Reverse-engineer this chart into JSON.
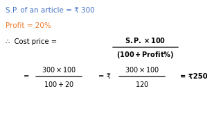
{
  "bg_color": "#ffffff",
  "line1_label": "S.P. of an article = ₹ 300",
  "line2_label": "Profit = 20%",
  "line1_color": "#4472c4",
  "line2_color": "#ed7d31",
  "text_color": "#000000",
  "rupee": "₹"
}
